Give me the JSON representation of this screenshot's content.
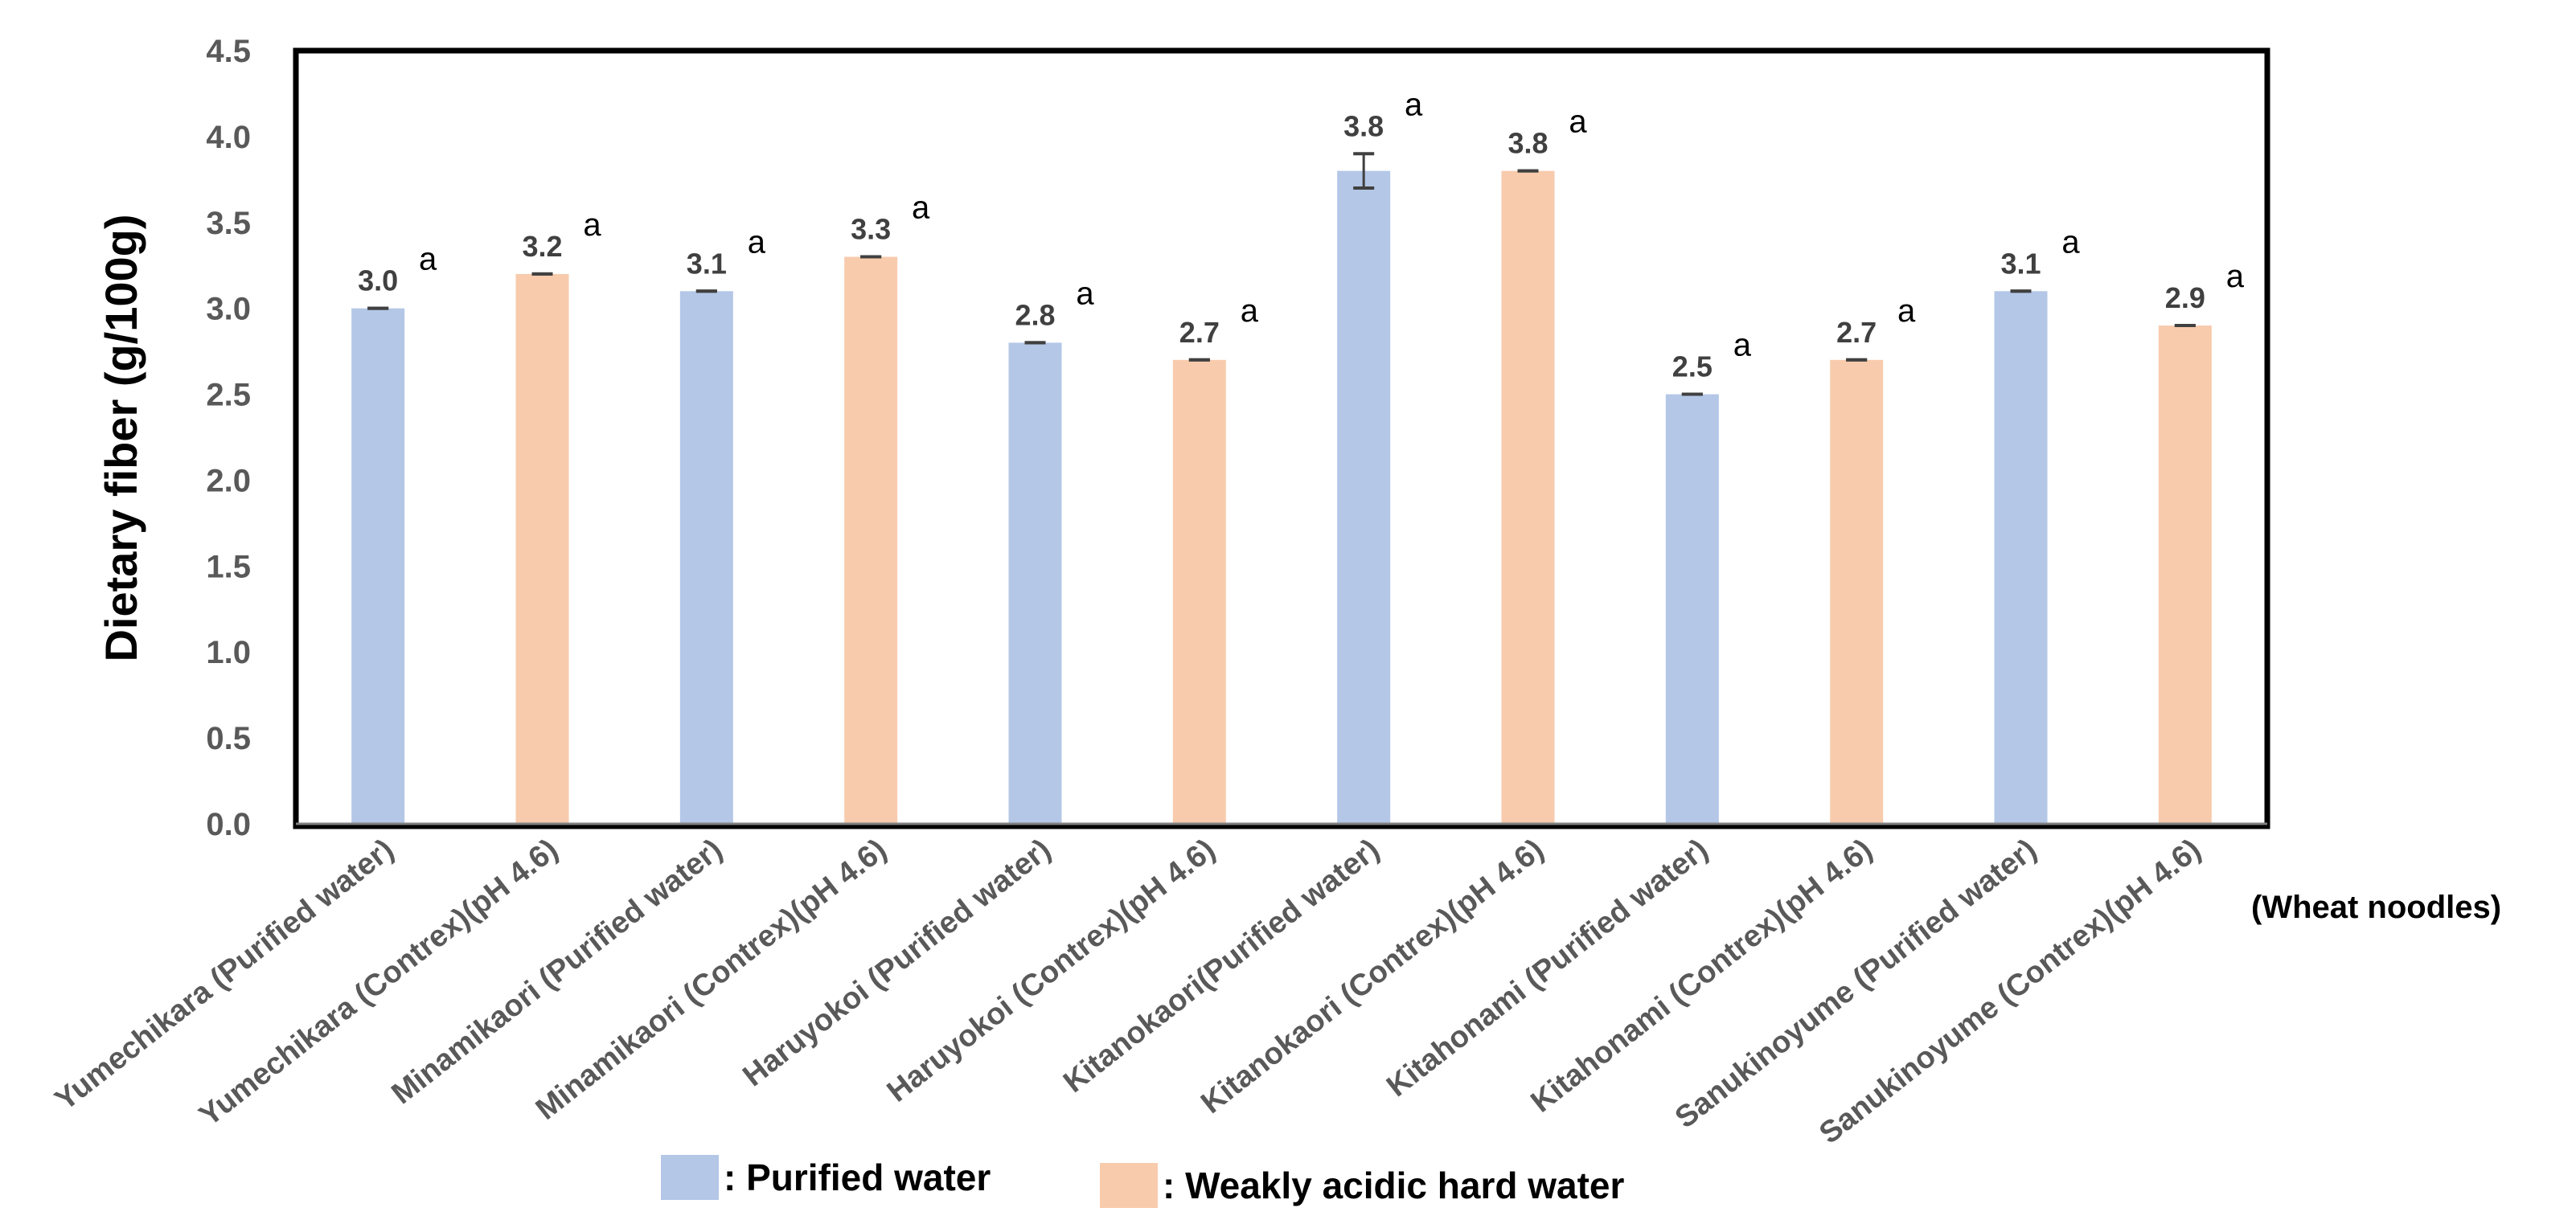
{
  "chart_data": {
    "type": "bar",
    "ylabel": "Dietary fiber (g/100g)",
    "xlabel": "",
    "x_note": "(Wheat noodles)",
    "ylim": [
      0,
      4.5
    ],
    "yticks": [
      "0.0",
      "0.5",
      "1.0",
      "1.5",
      "2.0",
      "2.5",
      "3.0",
      "3.5",
      "4.0",
      "4.5"
    ],
    "ytick_values": [
      0,
      0.5,
      1.0,
      1.5,
      2.0,
      2.5,
      3.0,
      3.5,
      4.0,
      4.5
    ],
    "grid": false,
    "legend_position": "bottom",
    "categories": [
      "Yumechikara (Purified water)",
      "Yumechikara  (Contrex)(pH 4.6)",
      "Minamikaori (Purified water)",
      "Minamikaori  (Contrex)(pH 4.6)",
      "Haruyokoi (Purified water)",
      "Haruyokoi (Contrex)(pH 4.6)",
      "Kitanokaori(Purified water)",
      "Kitanokaori (Contrex)(pH 4.6)",
      "Kitahonami (Purified water)",
      "Kitahonami (Contrex)(pH 4.6)",
      "Sanukinoyume (Purified water)",
      "Sanukinoyume (Contrex)(pH 4.6)"
    ],
    "values": [
      3.0,
      3.2,
      3.1,
      3.3,
      2.8,
      2.7,
      3.8,
      3.8,
      2.5,
      2.7,
      3.1,
      2.9
    ],
    "value_labels": [
      "3.0",
      "3.2",
      "3.1",
      "3.3",
      "2.8",
      "2.7",
      "3.8",
      "3.8",
      "2.5",
      "2.7",
      "3.1",
      "2.9"
    ],
    "errors": [
      0,
      0,
      0,
      0,
      0,
      0,
      0.1,
      0,
      0,
      0,
      0,
      0
    ],
    "series_index": [
      0,
      1,
      0,
      1,
      0,
      1,
      0,
      1,
      0,
      1,
      0,
      1
    ],
    "significance": [
      "a",
      "a",
      "a",
      "a",
      "a",
      "a",
      "a",
      "a",
      "a",
      "a",
      "a",
      "a"
    ],
    "series": [
      {
        "name": ": Purified water",
        "color": "#b4c7e7"
      },
      {
        "name": ": Weakly acidic hard water",
        "color": "#f8cbad"
      }
    ]
  }
}
